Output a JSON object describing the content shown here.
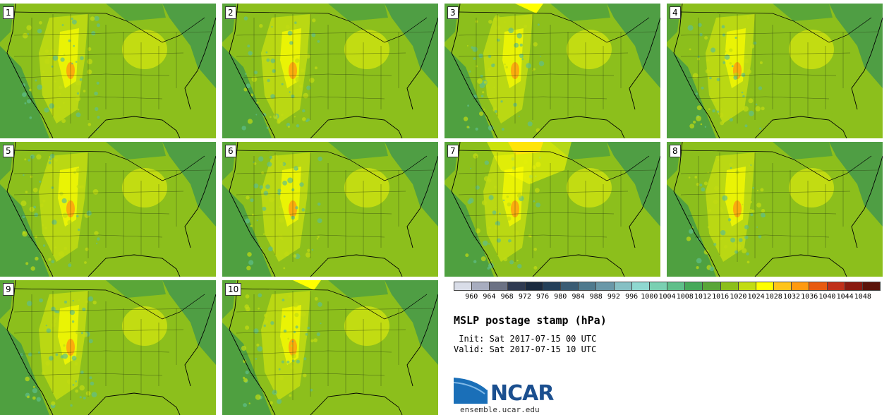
{
  "panels": [
    {
      "label": "1"
    },
    {
      "label": "2"
    },
    {
      "label": "3"
    },
    {
      "label": "4"
    },
    {
      "label": "5"
    },
    {
      "label": "6"
    },
    {
      "label": "7"
    },
    {
      "label": "8"
    },
    {
      "label": "9"
    },
    {
      "label": "10"
    }
  ],
  "colorbar": {
    "levels": [
      "960",
      "964",
      "968",
      "972",
      "976",
      "980",
      "984",
      "988",
      "992",
      "996",
      "1000",
      "1004",
      "1008",
      "1012",
      "1016",
      "1020",
      "1024",
      "1028",
      "1032",
      "1036",
      "1040",
      "1044",
      "1048"
    ],
    "colors": [
      "#d9dde8",
      "#a8adbf",
      "#6b7184",
      "#2f3a52",
      "#1a2a40",
      "#24405a",
      "#3a5c74",
      "#4f7a8e",
      "#6a98a8",
      "#86c0c4",
      "#8fd8d0",
      "#7ad0b2",
      "#5fbf8a",
      "#47a95a",
      "#5aa638",
      "#8cbf1c",
      "#c2dc12",
      "#ffff00",
      "#ffc41a",
      "#ff9a10",
      "#e85a10",
      "#c0301a",
      "#8a1a10",
      "#5c140a"
    ]
  },
  "title": "MSLP postage stamp (hPa)",
  "init": " Init: Sat 2017-07-15 00 UTC",
  "valid": "Valid: Sat 2017-07-15 10 UTC",
  "logo": {
    "brand": "NCAR",
    "site": "ensemble.ucar.edu"
  }
}
